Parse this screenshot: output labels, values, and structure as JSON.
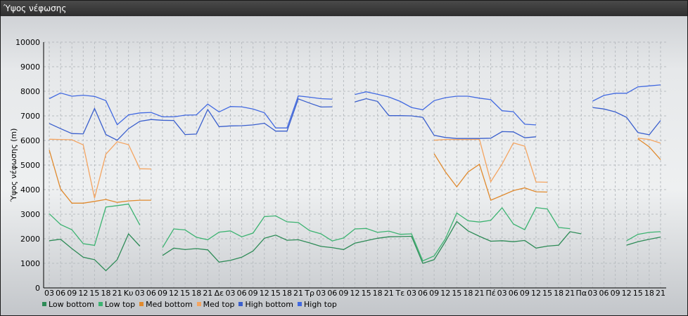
{
  "window": {
    "title": "Ύψος νέφωσης"
  },
  "chart_data": {
    "type": "line",
    "title": "",
    "xlabel": "",
    "ylabel": "Ύψος νέφωσης (m)",
    "ylim": [
      0,
      10000
    ],
    "yticks": [
      0,
      1000,
      2000,
      3000,
      4000,
      5000,
      6000,
      7000,
      8000,
      9000,
      10000
    ],
    "grid": true,
    "legend_position": "bottom-left",
    "x": [
      "03",
      "06",
      "09",
      "12",
      "15",
      "18",
      "21",
      "Κυ",
      "03",
      "06",
      "09",
      "12",
      "15",
      "18",
      "21",
      "Δε",
      "03",
      "06",
      "09",
      "12",
      "15",
      "18",
      "21",
      "Τρ",
      "03",
      "06",
      "09",
      "12",
      "15",
      "18",
      "21",
      "Τε",
      "03",
      "06",
      "09",
      "12",
      "15",
      "18",
      "21",
      "Πέ",
      "03",
      "06",
      "09",
      "12",
      "15",
      "18",
      "21",
      "Πα",
      "03",
      "06",
      "09",
      "12",
      "15",
      "18",
      "21"
    ],
    "series": [
      {
        "name": "Low bottom",
        "color": "#2e8b57",
        "values": [
          1920,
          1980,
          1600,
          1250,
          1150,
          700,
          1150,
          2200,
          1700,
          null,
          1320,
          1620,
          1560,
          1600,
          1550,
          1050,
          1120,
          1250,
          1500,
          2020,
          2150,
          1940,
          1960,
          1830,
          1690,
          1640,
          1560,
          1820,
          1920,
          2020,
          2080,
          2090,
          2100,
          1000,
          1150,
          1890,
          2700,
          2320,
          2100,
          1900,
          1920,
          1880,
          1930,
          1620,
          1700,
          1740,
          2290,
          2200,
          null,
          null,
          null,
          1740,
          1880,
          1980,
          2070
        ]
      },
      {
        "name": "Low top",
        "color": "#3cb371",
        "values": [
          3020,
          2580,
          2370,
          1800,
          1730,
          3290,
          3350,
          3410,
          2560,
          null,
          1640,
          2400,
          2360,
          2060,
          1960,
          2270,
          2320,
          2080,
          2230,
          2900,
          2930,
          2690,
          2660,
          2330,
          2200,
          1910,
          2030,
          2400,
          2420,
          2260,
          2310,
          2180,
          2200,
          1100,
          1300,
          2000,
          3050,
          2730,
          2680,
          2750,
          3260,
          2600,
          2370,
          3270,
          3210,
          2460,
          2410,
          null,
          null,
          null,
          null,
          1920,
          2180,
          2260,
          2290
        ]
      },
      {
        "name": "Med bottom",
        "color": "#e08a2e",
        "values": [
          5610,
          4020,
          3450,
          3450,
          3520,
          3600,
          3480,
          3540,
          3570,
          3570,
          null,
          null,
          null,
          null,
          null,
          null,
          null,
          null,
          null,
          null,
          null,
          null,
          null,
          null,
          null,
          null,
          null,
          null,
          null,
          null,
          null,
          null,
          null,
          null,
          5460,
          4720,
          4110,
          4720,
          5030,
          3570,
          3760,
          3960,
          4070,
          3910,
          3900,
          null,
          null,
          null,
          null,
          null,
          null,
          null,
          6070,
          5740,
          5220
        ]
      },
      {
        "name": "Med top",
        "color": "#f4a460",
        "values": [
          6050,
          6040,
          6030,
          5820,
          3660,
          5440,
          5950,
          5830,
          4850,
          4840,
          null,
          null,
          null,
          null,
          null,
          null,
          null,
          null,
          null,
          null,
          null,
          null,
          null,
          null,
          null,
          null,
          null,
          null,
          null,
          null,
          null,
          null,
          null,
          null,
          6010,
          6040,
          6040,
          6040,
          6050,
          4320,
          5040,
          5900,
          5770,
          4310,
          4300,
          null,
          null,
          null,
          null,
          null,
          null,
          null,
          6090,
          6040,
          5890
        ]
      },
      {
        "name": "High bottom",
        "color": "#3a5fcd",
        "values": [
          6690,
          6480,
          6280,
          6270,
          7300,
          6240,
          6010,
          6480,
          6780,
          6850,
          6820,
          6810,
          6240,
          6260,
          7260,
          6560,
          6590,
          6600,
          6630,
          6700,
          6380,
          6380,
          7690,
          7520,
          7360,
          7370,
          null,
          7570,
          7700,
          7590,
          7010,
          7010,
          7000,
          6940,
          6210,
          6120,
          6080,
          6080,
          6080,
          6090,
          6360,
          6350,
          6110,
          6150,
          null,
          null,
          null,
          null,
          7340,
          7280,
          7160,
          6940,
          6320,
          6230,
          6810
        ]
      },
      {
        "name": "High top",
        "color": "#4169e1",
        "values": [
          7700,
          7930,
          7800,
          7840,
          7790,
          7620,
          6640,
          7040,
          7120,
          7140,
          6960,
          6960,
          7030,
          7040,
          7480,
          7160,
          7380,
          7370,
          7280,
          7130,
          6510,
          6510,
          7810,
          7760,
          7700,
          7680,
          null,
          7870,
          7980,
          7880,
          7770,
          7590,
          7340,
          7250,
          7620,
          7740,
          7800,
          7800,
          7720,
          7660,
          7210,
          7170,
          6660,
          6630,
          null,
          null,
          null,
          null,
          7600,
          7830,
          7920,
          7920,
          8180,
          8220,
          8260
        ]
      }
    ]
  }
}
